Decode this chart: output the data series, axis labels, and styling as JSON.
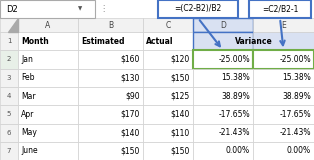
{
  "cell_ref": "D2",
  "formula1": "=(C2-B2)/B2",
  "formula2": "=C2/B2-1",
  "col_letters": [
    "A",
    "B",
    "C",
    "D",
    "E"
  ],
  "months": [
    "Month",
    "Jan",
    "Feb",
    "Mar",
    "Apr",
    "May",
    "June"
  ],
  "estimated": [
    "Estimated",
    "$160",
    "$130",
    "$90",
    "$170",
    "$140",
    "$150"
  ],
  "actual": [
    "Actual",
    "$120",
    "$150",
    "$125",
    "$140",
    "$110",
    "$150"
  ],
  "var_d": [
    "Variance",
    "-25.00%",
    "15.38%",
    "38.89%",
    "-17.65%",
    "-21.43%",
    "0.00%"
  ],
  "var_e": [
    "",
    "-25.00%",
    "15.38%",
    "38.89%",
    "-17.65%",
    "-21.43%",
    "0.00%"
  ],
  "row_labels": [
    "1",
    "2",
    "3",
    "4",
    "5",
    "6",
    "7"
  ],
  "bg_white": "#FFFFFF",
  "grid_color": "#D0D0D0",
  "row_num_bg": "#F2F2F2",
  "col_letter_bg": "#F2F2F2",
  "col_D_letter_bg": "#D9E1F2",
  "formula_border": "#4472C4",
  "arrow_color": "#4472C4",
  "green_border": "#70AD47",
  "figsize": [
    3.14,
    1.6
  ],
  "dpi": 100
}
